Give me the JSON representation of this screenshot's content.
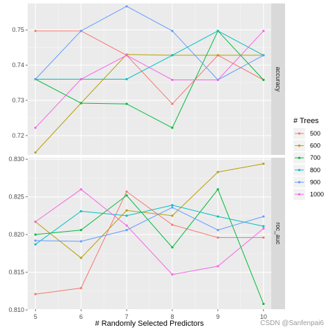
{
  "chart_data": {
    "type": "line",
    "xlabel": "# Randomly Selected Predictors",
    "legend_title": "# Trees",
    "legend_position": "right",
    "x": [
      5,
      6,
      7,
      8,
      9,
      10
    ],
    "x_ticks": [
      "5",
      "6",
      "7",
      "8",
      "9",
      "10"
    ],
    "grid": true,
    "colors": {
      "500": "#F8766D",
      "600": "#B79F00",
      "700": "#00BA38",
      "800": "#00BFC4",
      "900": "#619CFF",
      "1000": "#F564E3"
    },
    "panels": [
      {
        "strip": "accuracy",
        "ylim": [
          0.7145,
          0.7575
        ],
        "y_ticks": [
          0.72,
          0.73,
          0.74,
          0.75
        ],
        "y_tick_labels": [
          "0.72",
          "0.73",
          "0.74",
          "0.75"
        ],
        "series": [
          {
            "name": "500",
            "values": [
              0.7497,
              0.7497,
              0.7428,
              0.729,
              0.7428,
              0.7358
            ]
          },
          {
            "name": "600",
            "values": [
              0.7152,
              0.7292,
              0.743,
              0.7428,
              0.7428,
              0.7428
            ]
          },
          {
            "name": "700",
            "values": [
              0.736,
              0.7292,
              0.729,
              0.7222,
              0.7497,
              0.7358
            ]
          },
          {
            "name": "800",
            "values": [
              0.736,
              0.736,
              0.736,
              0.7428,
              0.7497,
              0.7428
            ]
          },
          {
            "name": "900",
            "values": [
              0.736,
              0.7497,
              0.7567,
              0.7497,
              0.7358,
              0.7428
            ]
          },
          {
            "name": "1000",
            "values": [
              0.7222,
              0.736,
              0.7428,
              0.7358,
              0.7358,
              0.7497
            ]
          }
        ]
      },
      {
        "strip": "roc_auc",
        "ylim": [
          0.8101,
          0.8302
        ],
        "y_ticks": [
          0.81,
          0.815,
          0.82,
          0.825,
          0.83
        ],
        "y_tick_labels": [
          "0.810",
          "0.815",
          "0.820",
          "0.825",
          "0.830"
        ],
        "series": [
          {
            "name": "500",
            "values": [
              0.8121,
              0.8129,
              0.8257,
              0.8213,
              0.8196,
              0.8196
            ]
          },
          {
            "name": "600",
            "values": [
              0.8217,
              0.8169,
              0.8232,
              0.8225,
              0.8283,
              0.8294
            ]
          },
          {
            "name": "700",
            "values": [
              0.82,
              0.8206,
              0.8252,
              0.8183,
              0.826,
              0.8108
            ]
          },
          {
            "name": "800",
            "values": [
              0.8187,
              0.8231,
              0.8225,
              0.8239,
              0.8224,
              0.8211
            ]
          },
          {
            "name": "900",
            "values": [
              0.8192,
              0.8191,
              0.8206,
              0.8236,
              0.8206,
              0.8224
            ]
          },
          {
            "name": "1000",
            "values": [
              0.8217,
              0.826,
              0.8212,
              0.8147,
              0.8158,
              0.8208
            ]
          }
        ]
      }
    ]
  },
  "watermark": "CSDN @Sanfenpai6"
}
